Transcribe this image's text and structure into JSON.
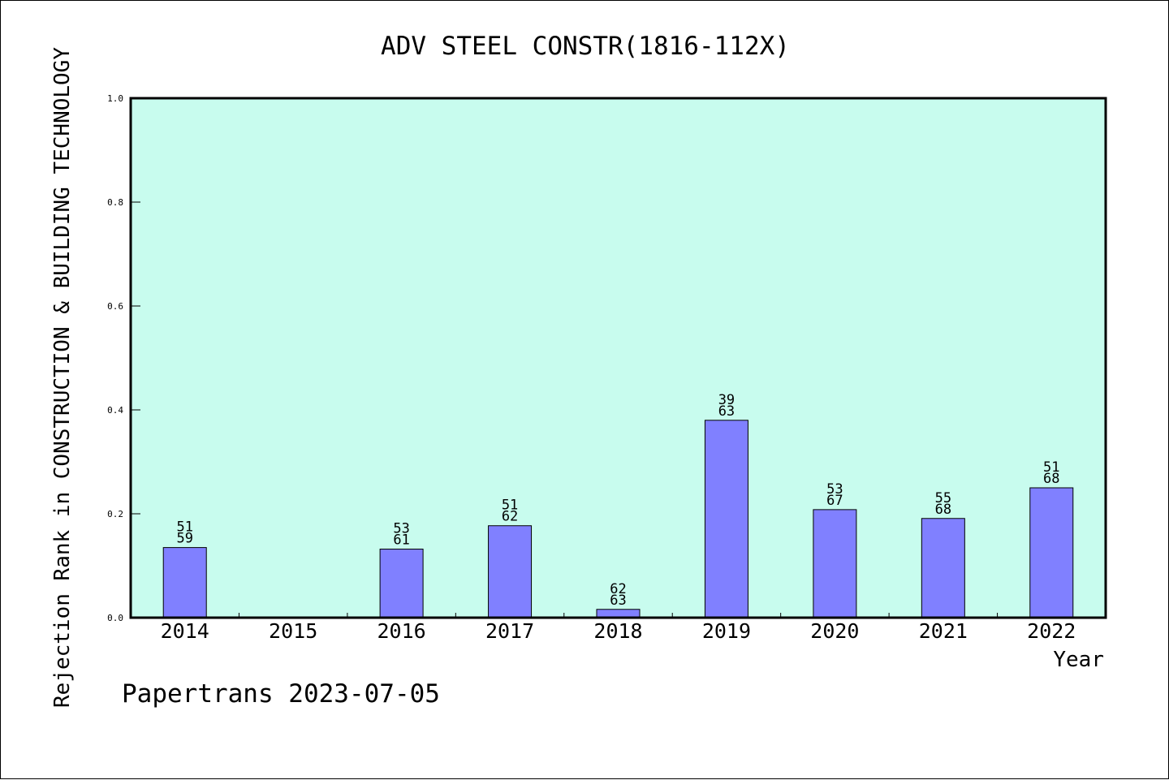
{
  "chart_data": {
    "type": "bar",
    "title": "ADV STEEL CONSTR(1816-112X)",
    "xlabel": "Year",
    "ylabel": "Rejection Rank in CONSTRUCTION & BUILDING TECHNOLOGY",
    "ylim": [
      0,
      1.0
    ],
    "yticks": [
      "0.0",
      "0.2",
      "0.4",
      "0.6",
      "0.8",
      "1.0"
    ],
    "categories": [
      "2014",
      "2015",
      "2016",
      "2017",
      "2018",
      "2019",
      "2020",
      "2021",
      "2022"
    ],
    "values": [
      0.135,
      null,
      0.132,
      0.177,
      0.016,
      0.38,
      0.208,
      0.191,
      0.25
    ],
    "label_top": [
      "51",
      "",
      "53",
      "51",
      "62",
      "39",
      "53",
      "55",
      "51"
    ],
    "label_bottom": [
      "59",
      "",
      "61",
      "62",
      "63",
      "63",
      "67",
      "68",
      "68"
    ],
    "grid": false,
    "colors": {
      "plot_bg": "#c8fcee",
      "bar": "#8080ff",
      "bar_edge": "#000000"
    }
  },
  "footer": "Papertrans 2023-07-05"
}
